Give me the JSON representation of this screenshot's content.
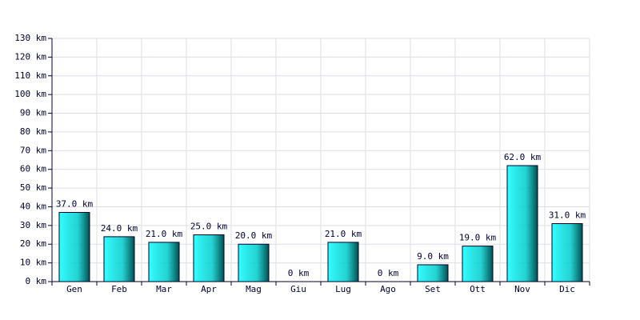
{
  "chart_data": {
    "type": "bar",
    "categories": [
      "Gen",
      "Feb",
      "Mar",
      "Apr",
      "Mag",
      "Giu",
      "Lug",
      "Ago",
      "Set",
      "Ott",
      "Nov",
      "Dic"
    ],
    "values": [
      37,
      24,
      21,
      25,
      20,
      0,
      21,
      0,
      9,
      19,
      62,
      31
    ],
    "value_labels": [
      "37.0 km",
      "24.0 km",
      "21.0 km",
      "25.0 km",
      "20.0 km",
      "0 km",
      "21.0 km",
      "0 km",
      "9.0 km",
      "19.0 km",
      "62.0 km",
      "31.0 km"
    ],
    "color": "#00cccc",
    "ylim": [
      0,
      130
    ],
    "yticks": [
      {
        "value": 0,
        "label": "0 km"
      },
      {
        "value": 10,
        "label": "10 km"
      },
      {
        "value": 20,
        "label": "20 km"
      },
      {
        "value": 30,
        "label": "30 km"
      },
      {
        "value": 40,
        "label": "40 km"
      },
      {
        "value": 50,
        "label": "50 km"
      },
      {
        "value": 60,
        "label": "60 km"
      },
      {
        "value": 70,
        "label": "70 km"
      },
      {
        "value": 80,
        "label": "80 km"
      },
      {
        "value": 90,
        "label": "90 km"
      },
      {
        "value": 100,
        "label": "100 km"
      },
      {
        "value": 110,
        "label": "110 km"
      },
      {
        "value": 120,
        "label": "120 km"
      },
      {
        "value": 130,
        "label": "130 km"
      }
    ],
    "grid": true
  }
}
